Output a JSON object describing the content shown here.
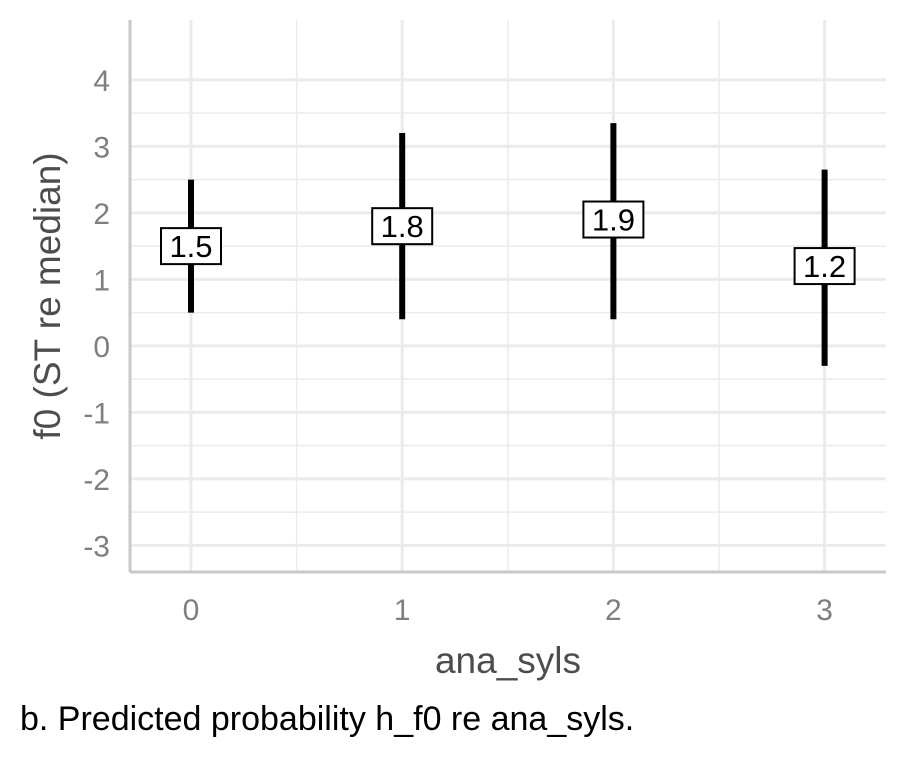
{
  "chart_data": {
    "type": "errorbar",
    "xlabel": "ana_syls",
    "ylabel": "f0 (ST re median)",
    "categories": [
      "0",
      "1",
      "2",
      "3"
    ],
    "estimates": [
      1.5,
      1.8,
      1.9,
      1.2
    ],
    "labels": [
      "1.5",
      "1.8",
      "1.9",
      "1.2"
    ],
    "lower": [
      0.5,
      0.4,
      0.4,
      -0.3
    ],
    "upper": [
      2.5,
      3.2,
      3.35,
      2.65
    ],
    "ylim": [
      -3.4,
      4.9
    ],
    "yticks": [
      -3,
      -2,
      -1,
      0,
      1,
      2,
      3,
      4
    ],
    "ytick_labels": [
      "-3",
      "-2",
      "-1",
      "0",
      "1",
      "2",
      "3",
      "4"
    ],
    "grid": true,
    "colors": {
      "bar": "#000000",
      "grid": "#ebebeb",
      "axis": "#c8c8c8",
      "tick_text": "#7f7f7f",
      "title_text": "#4d4d4d"
    }
  },
  "caption": "b. Predicted probability h_f0 re ana_syls."
}
